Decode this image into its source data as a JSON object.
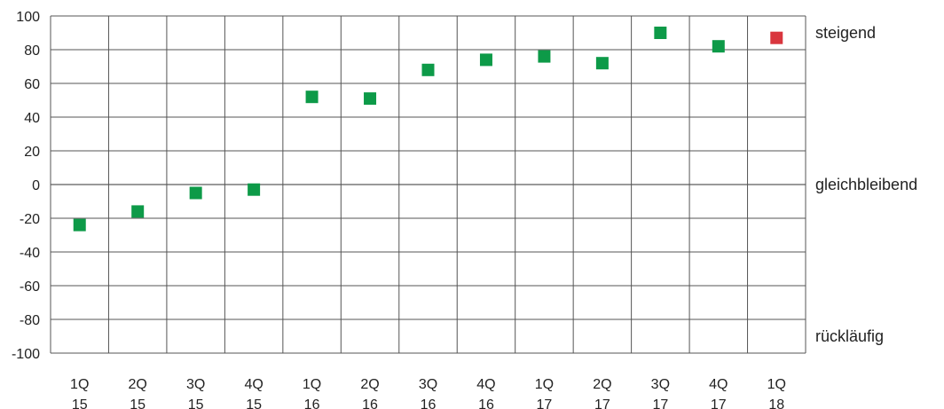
{
  "chart_data": {
    "type": "scatter",
    "title": "",
    "xlabel": "",
    "ylabel": "",
    "categories": [
      [
        "1Q",
        "15"
      ],
      [
        "2Q",
        "15"
      ],
      [
        "3Q",
        "15"
      ],
      [
        "4Q",
        "15"
      ],
      [
        "1Q",
        "16"
      ],
      [
        "2Q",
        "16"
      ],
      [
        "3Q",
        "16"
      ],
      [
        "4Q",
        "16"
      ],
      [
        "1Q",
        "17"
      ],
      [
        "2Q",
        "17"
      ],
      [
        "3Q",
        "17"
      ],
      [
        "4Q",
        "17"
      ],
      [
        "1Q",
        "18"
      ]
    ],
    "values": [
      -24,
      -16,
      -5,
      -3,
      52,
      51,
      68,
      74,
      76,
      72,
      90,
      82,
      87
    ],
    "point_colors": [
      "#0d9a48",
      "#0d9a48",
      "#0d9a48",
      "#0d9a48",
      "#0d9a48",
      "#0d9a48",
      "#0d9a48",
      "#0d9a48",
      "#0d9a48",
      "#0d9a48",
      "#0d9a48",
      "#0d9a48",
      "#d9363e"
    ],
    "ylim": [
      -100,
      100
    ],
    "yticks": [
      100,
      80,
      60,
      40,
      20,
      0,
      -20,
      -40,
      -60,
      -80,
      -100
    ],
    "grid": true,
    "right_labels": [
      {
        "text": "steigend",
        "y": 90
      },
      {
        "text": "gleichbleibend",
        "y": 0
      },
      {
        "text": "rückläufig",
        "y": -90
      }
    ]
  }
}
